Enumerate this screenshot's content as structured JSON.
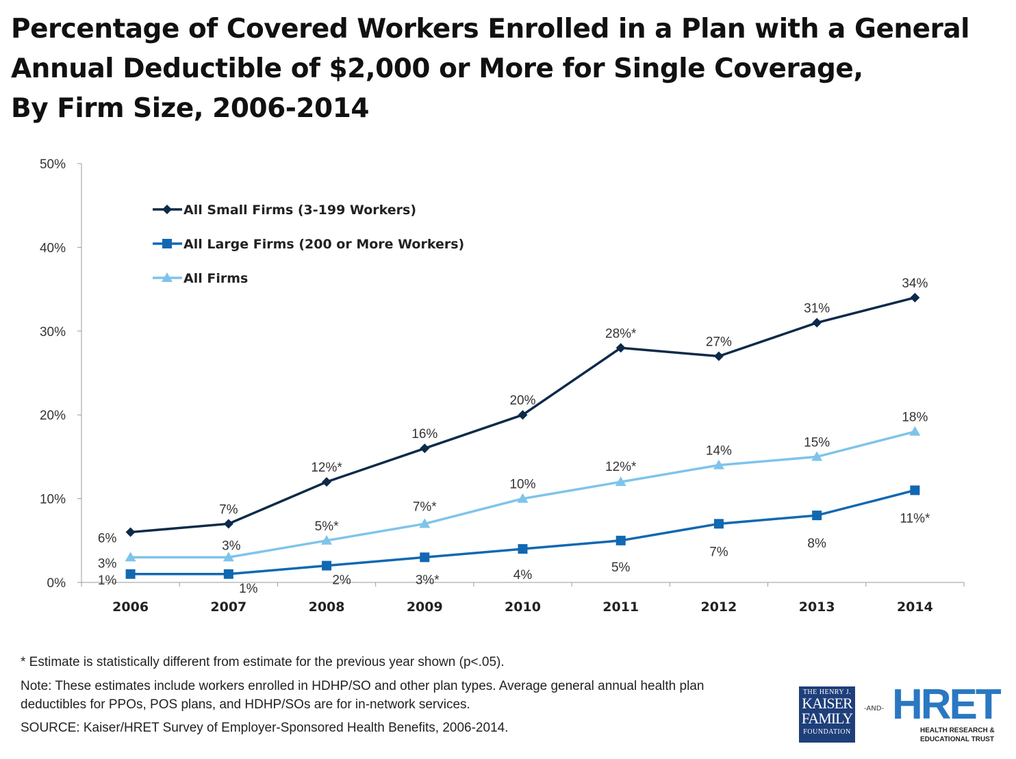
{
  "title_lines": [
    "Percentage of Covered Workers Enrolled in a Plan with a General",
    "Annual Deductible of $2,000 or More for Single Coverage,",
    "By Firm Size, 2006-2014"
  ],
  "chart_data": {
    "type": "line",
    "title": "Percentage of Covered Workers Enrolled in a Plan with a General Annual Deductible of $2,000 or More for Single Coverage, By Firm Size, 2006-2014",
    "x": [
      "2006",
      "2007",
      "2008",
      "2009",
      "2010",
      "2011",
      "2012",
      "2013",
      "2014"
    ],
    "ylim": [
      0,
      50
    ],
    "yticks": [
      "0%",
      "10%",
      "20%",
      "30%",
      "40%",
      "50%"
    ],
    "grid": false,
    "legend": "top-left",
    "series": [
      {
        "name": "All Small Firms (3-199 Workers)",
        "color": "#0d2a4a",
        "marker": "diamond",
        "values": [
          6,
          7,
          12,
          16,
          20,
          28,
          27,
          31,
          34
        ],
        "labels": [
          "6%",
          "7%",
          "12%*",
          "16%",
          "20%",
          "28%*",
          "27%",
          "31%",
          "34%"
        ]
      },
      {
        "name": "All Large Firms (200 or More Workers)",
        "color": "#1168b2",
        "marker": "square",
        "values": [
          1,
          1,
          2,
          3,
          4,
          5,
          7,
          8,
          11
        ],
        "labels": [
          "1%",
          "1%",
          "2%",
          "3%*",
          "4%",
          "5%",
          "7%",
          "8%",
          "11%*"
        ]
      },
      {
        "name": "All Firms",
        "color": "#7ec4ea",
        "marker": "triangle",
        "values": [
          3,
          3,
          5,
          7,
          10,
          12,
          14,
          15,
          18
        ],
        "labels": [
          "3%",
          "3%",
          "5%*",
          "7%*",
          "10%",
          "12%*",
          "14%",
          "15%",
          "18%"
        ]
      }
    ]
  },
  "notes": {
    "asterisk": "* Estimate is statistically different from estimate for the previous year shown (p<.05).",
    "note1": "Note: These estimates include workers enrolled in HDHP/SO and other plan types.   Average general annual health plan",
    "note2": "deductibles for PPOs, POS plans, and HDHP/SOs are for in-network services.",
    "source": "SOURCE: Kaiser/HRET Survey of Employer-Sponsored Health Benefits, 2006-2014."
  },
  "logos": {
    "kff": [
      "THE HENRY J.",
      "KAISER",
      "FAMILY",
      "FOUNDATION"
    ],
    "and": "-AND-",
    "hret": "HRET",
    "hret_sub": [
      "HEALTH RESEARCH &",
      "EDUCATIONAL TRUST"
    ]
  }
}
